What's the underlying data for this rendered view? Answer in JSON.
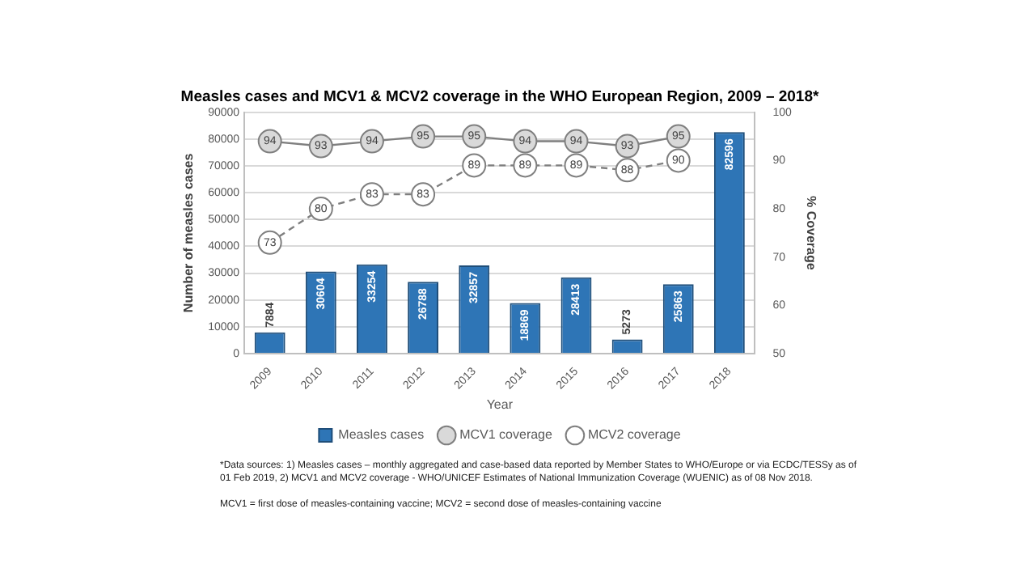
{
  "chart_data": {
    "type": "bar",
    "title": "Measles cases and MCV1 & MCV2 coverage in the WHO European Region, 2009 – 2018*",
    "xlabel": "Year",
    "ylabel": "Number of measles cases",
    "y2label": "% Coverage",
    "categories": [
      "2009",
      "2010",
      "2011",
      "2012",
      "2013",
      "2014",
      "2015",
      "2016",
      "2017",
      "2018"
    ],
    "series": [
      {
        "name": "Measles cases",
        "color": "#2e75b6",
        "values": [
          7884,
          30604,
          33254,
          26788,
          32857,
          18869,
          28413,
          5273,
          25863,
          82596
        ]
      },
      {
        "name": "MCV1 coverage",
        "type": "line",
        "axis": "y2",
        "color": "#7f7f7f",
        "marker": "circle",
        "line_style": "solid",
        "values": [
          94,
          93,
          94,
          95,
          95,
          94,
          94,
          93,
          95,
          null
        ]
      },
      {
        "name": "MCV2 coverage",
        "type": "line",
        "axis": "y2",
        "color": "#7f7f7f",
        "marker": "circle",
        "line_style": "dashed",
        "values": [
          73,
          80,
          83,
          83,
          89,
          89,
          89,
          88,
          90,
          null
        ]
      }
    ],
    "ylim": [
      0,
      90000
    ],
    "yticks": [
      0,
      10000,
      20000,
      30000,
      40000,
      50000,
      60000,
      70000,
      80000,
      90000
    ],
    "y2lim": [
      50,
      100
    ],
    "y2ticks": [
      50,
      60,
      70,
      80,
      90,
      100
    ],
    "grid": "y",
    "legend": "bottom",
    "data_labels": true,
    "annotations": [
      "*Data sources: 1) Measles cases – monthly aggregated and case-based data reported by Member States to WHO/Europe or via ECDC/TESSy as of 01 Feb 2019, 2) MCV1 and MCV2 coverage - WHO/UNICEF Estimates of National Immunization Coverage (WUENIC) as of 08 Nov 2018.",
      "MCV1 = first dose of measles-containing vaccine; MCV2 = second dose of measles-containing vaccine"
    ]
  }
}
